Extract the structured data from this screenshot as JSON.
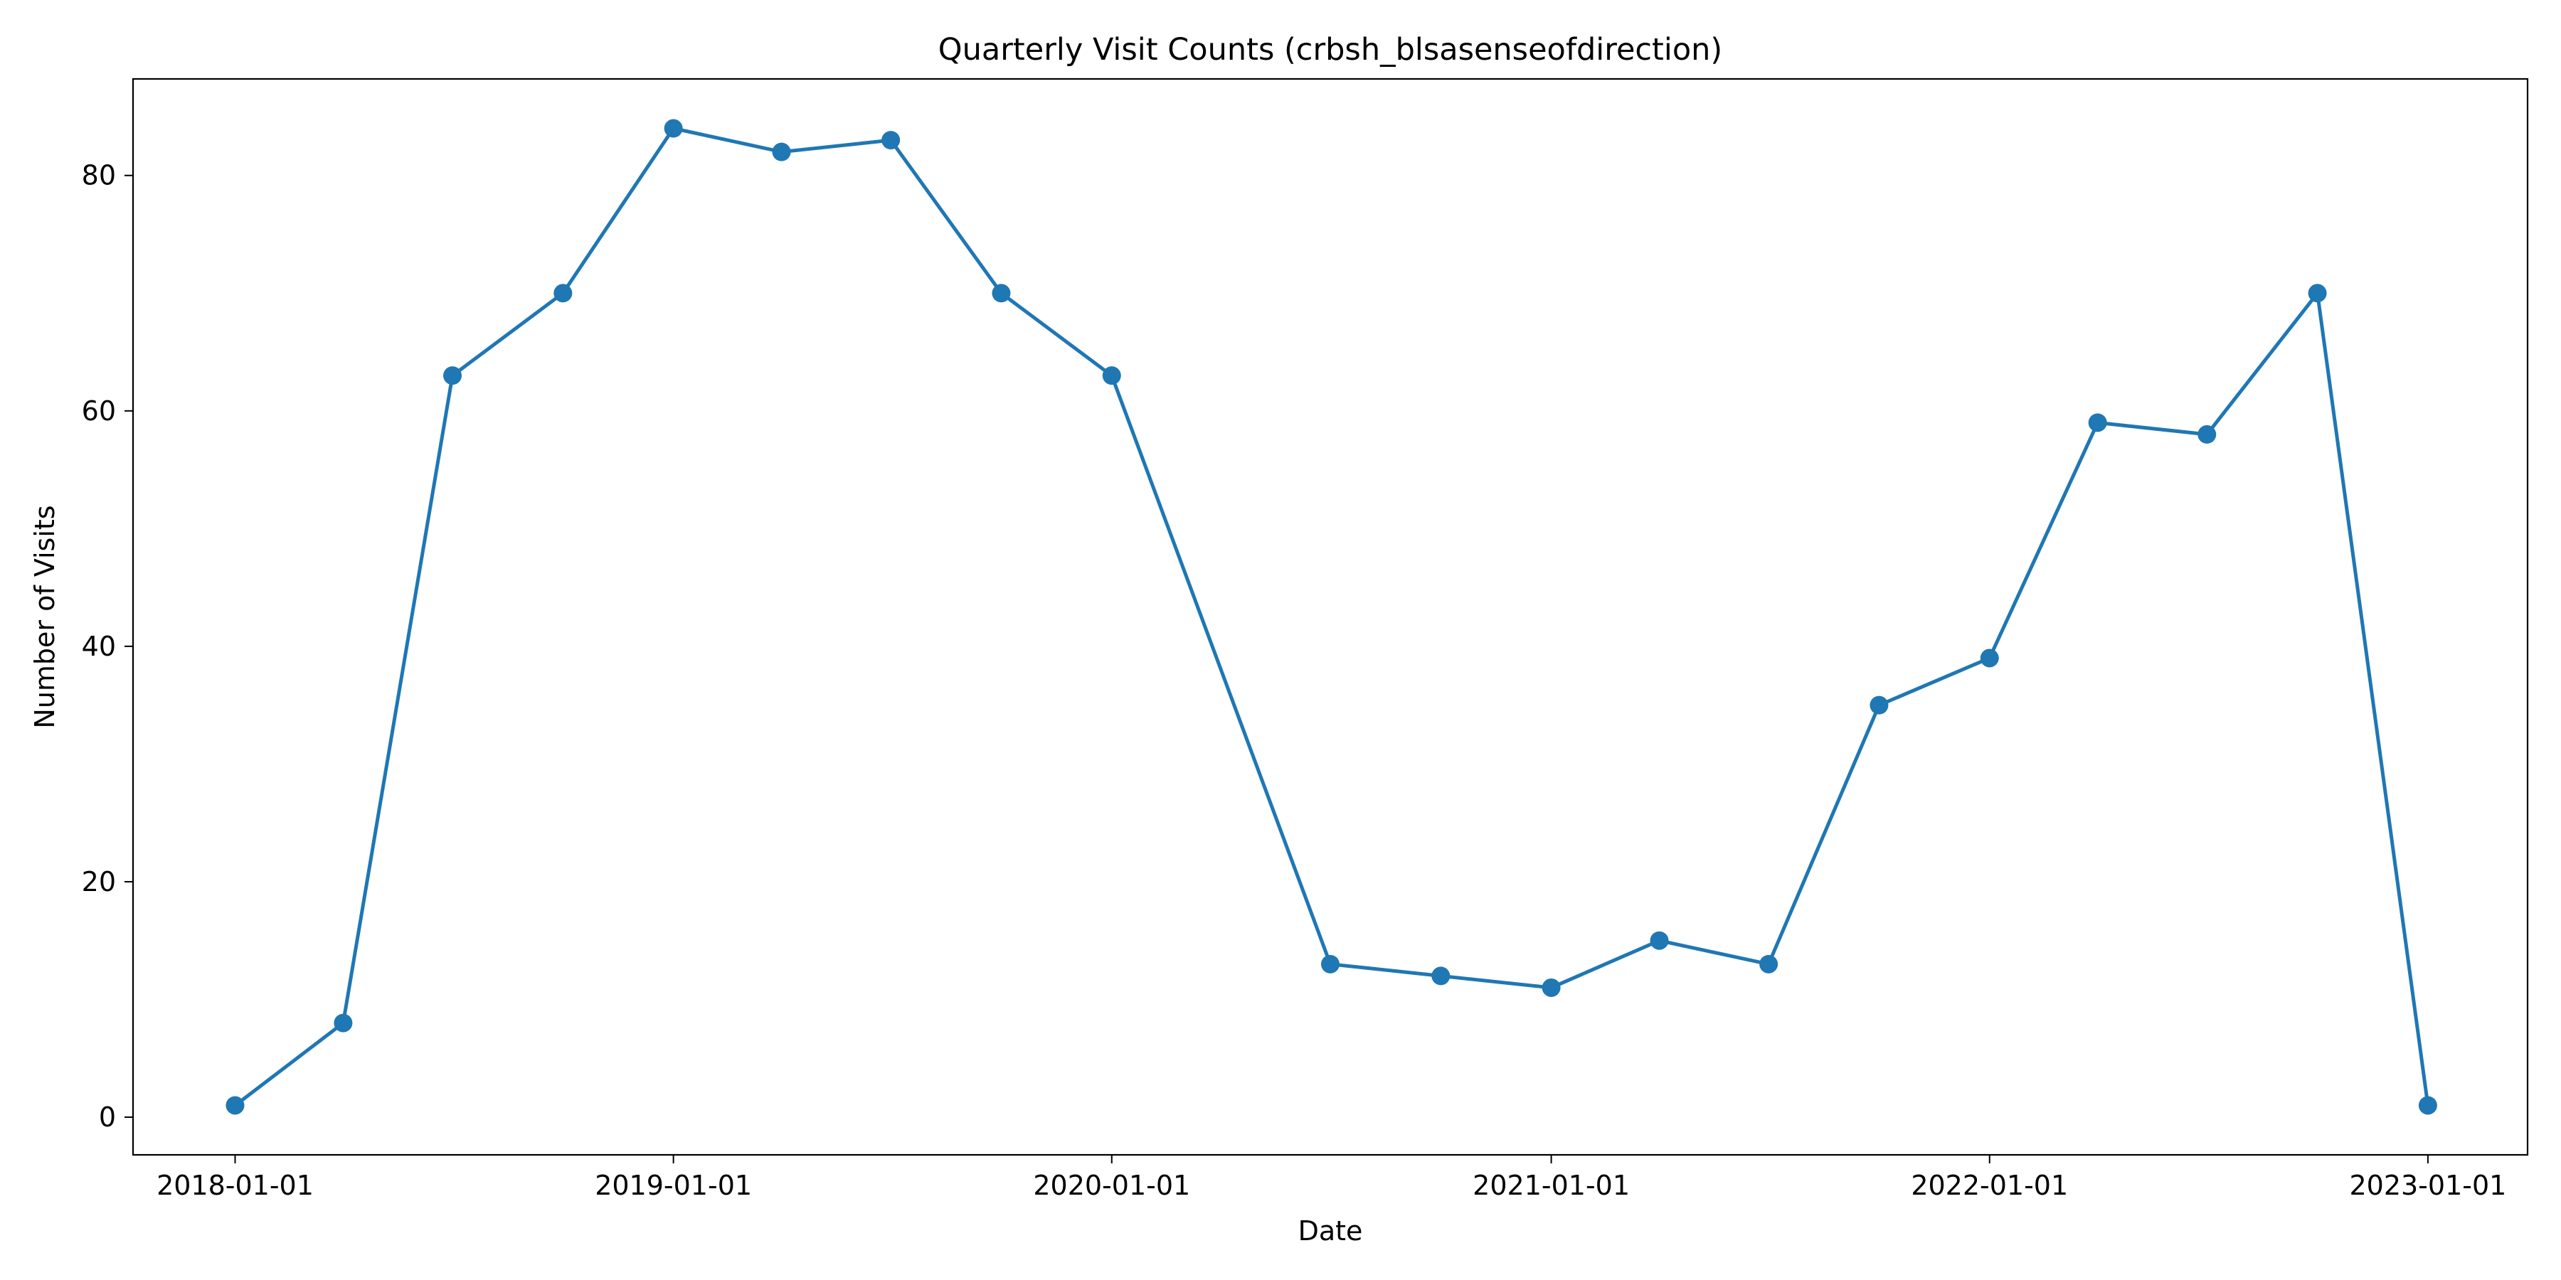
{
  "chart_data": {
    "type": "line",
    "title": "Quarterly Visit Counts (crbsh_blsasenseofdirection)",
    "xlabel": "Date",
    "ylabel": "Number of Visits",
    "x": [
      "2018-01-01",
      "2018-04-01",
      "2018-07-01",
      "2018-10-01",
      "2019-01-01",
      "2019-04-01",
      "2019-07-01",
      "2019-10-01",
      "2020-01-01",
      "2020-07-01",
      "2020-10-01",
      "2021-01-01",
      "2021-04-01",
      "2021-07-01",
      "2021-10-01",
      "2022-01-01",
      "2022-04-01",
      "2022-07-01",
      "2022-10-01",
      "2023-01-01"
    ],
    "series": [
      {
        "values": [
          1,
          8,
          63,
          70,
          84,
          82,
          83,
          70,
          63,
          13,
          12,
          11,
          15,
          13,
          35,
          39,
          59,
          58,
          70,
          1
        ]
      }
    ],
    "x_ticks": [
      "2018-01-01",
      "2019-01-01",
      "2020-01-01",
      "2021-01-01",
      "2022-01-01",
      "2023-01-01"
    ],
    "y_ticks": [
      0,
      20,
      40,
      60,
      80
    ],
    "xlim": [
      "2017-10-08",
      "2023-03-25"
    ],
    "ylim": [
      -3.2,
      88.2
    ],
    "grid": false,
    "colors": {
      "line": "#1f77b4"
    }
  }
}
